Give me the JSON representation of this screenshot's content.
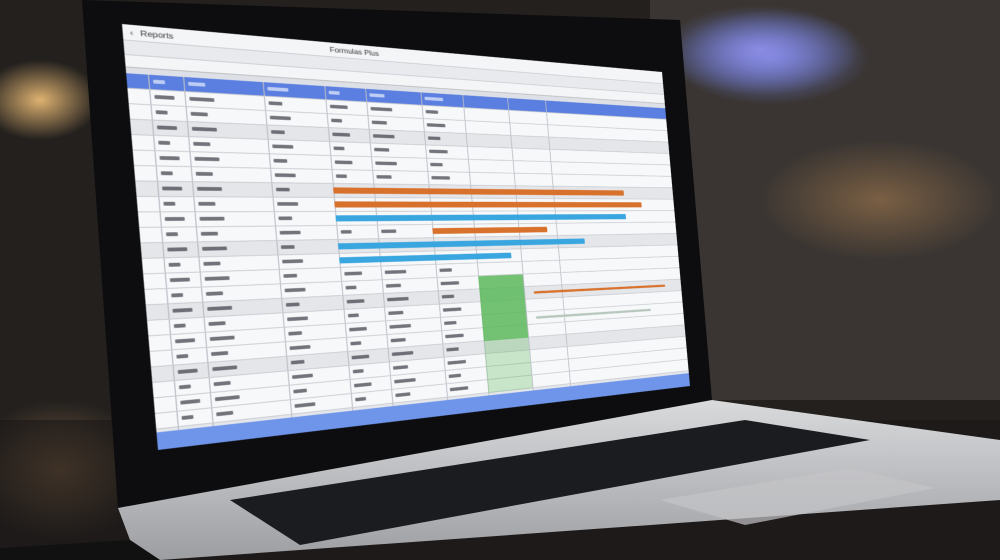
{
  "scene": {
    "description_type": "photo of a laptop displaying a spreadsheet with gantt-style bars",
    "colors": {
      "header_blue": "#5a7fe0",
      "bar_orange": "#d8712b",
      "bar_blue": "#3aa6e0",
      "block_green": "#5cb85c",
      "bar_grey": "#b8c7bd"
    }
  },
  "spreadsheet": {
    "toolbar_labels": [
      "Reports",
      "Formulas Plus"
    ]
  }
}
